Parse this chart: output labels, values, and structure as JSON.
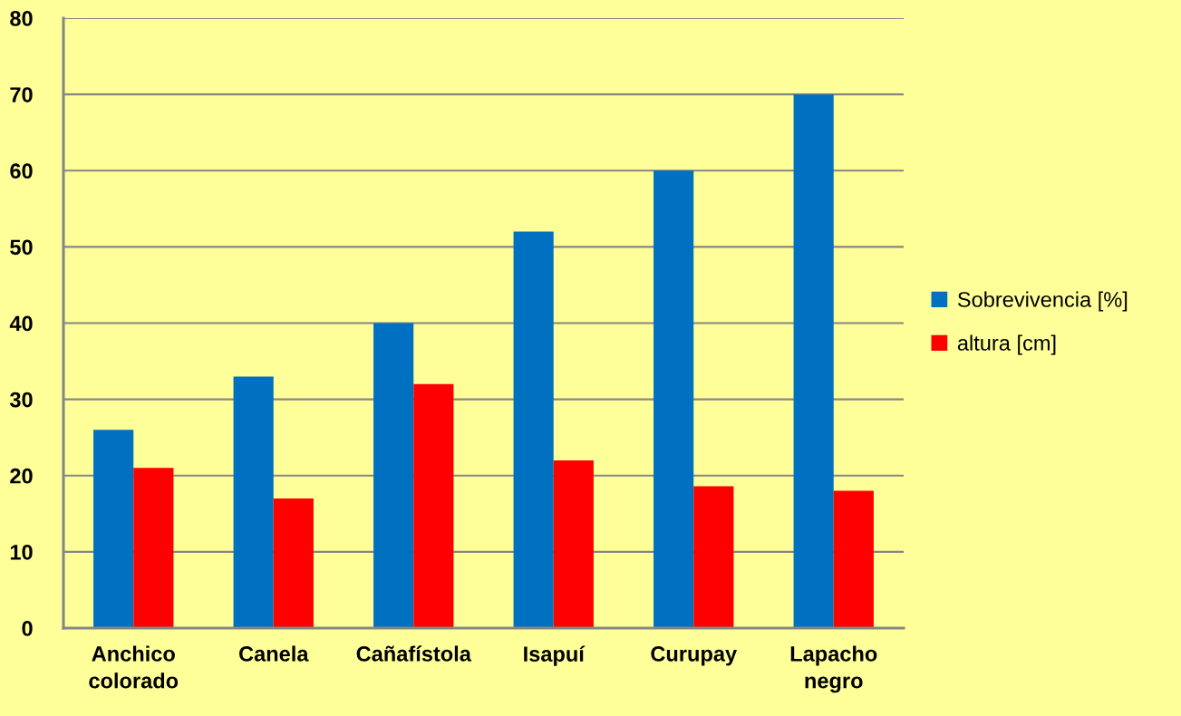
{
  "chart_data": {
    "type": "bar",
    "categories": [
      "Anchico colorado",
      "Canela",
      "Cañafístola",
      "Isapuí",
      "Curupay",
      "Lapacho negro"
    ],
    "series": [
      {
        "name": "Sobrevivencia [%]",
        "color": "#0070c0",
        "values": [
          26,
          33,
          40,
          52,
          60,
          70
        ]
      },
      {
        "name": "altura [cm]",
        "color": "#ff0000",
        "values": [
          21,
          17,
          32,
          22,
          18.6,
          18
        ]
      }
    ],
    "ylim": [
      0,
      80
    ],
    "yticks": [
      0,
      10,
      20,
      30,
      40,
      50,
      60,
      70,
      80
    ],
    "grid": "y",
    "legend": "right"
  }
}
